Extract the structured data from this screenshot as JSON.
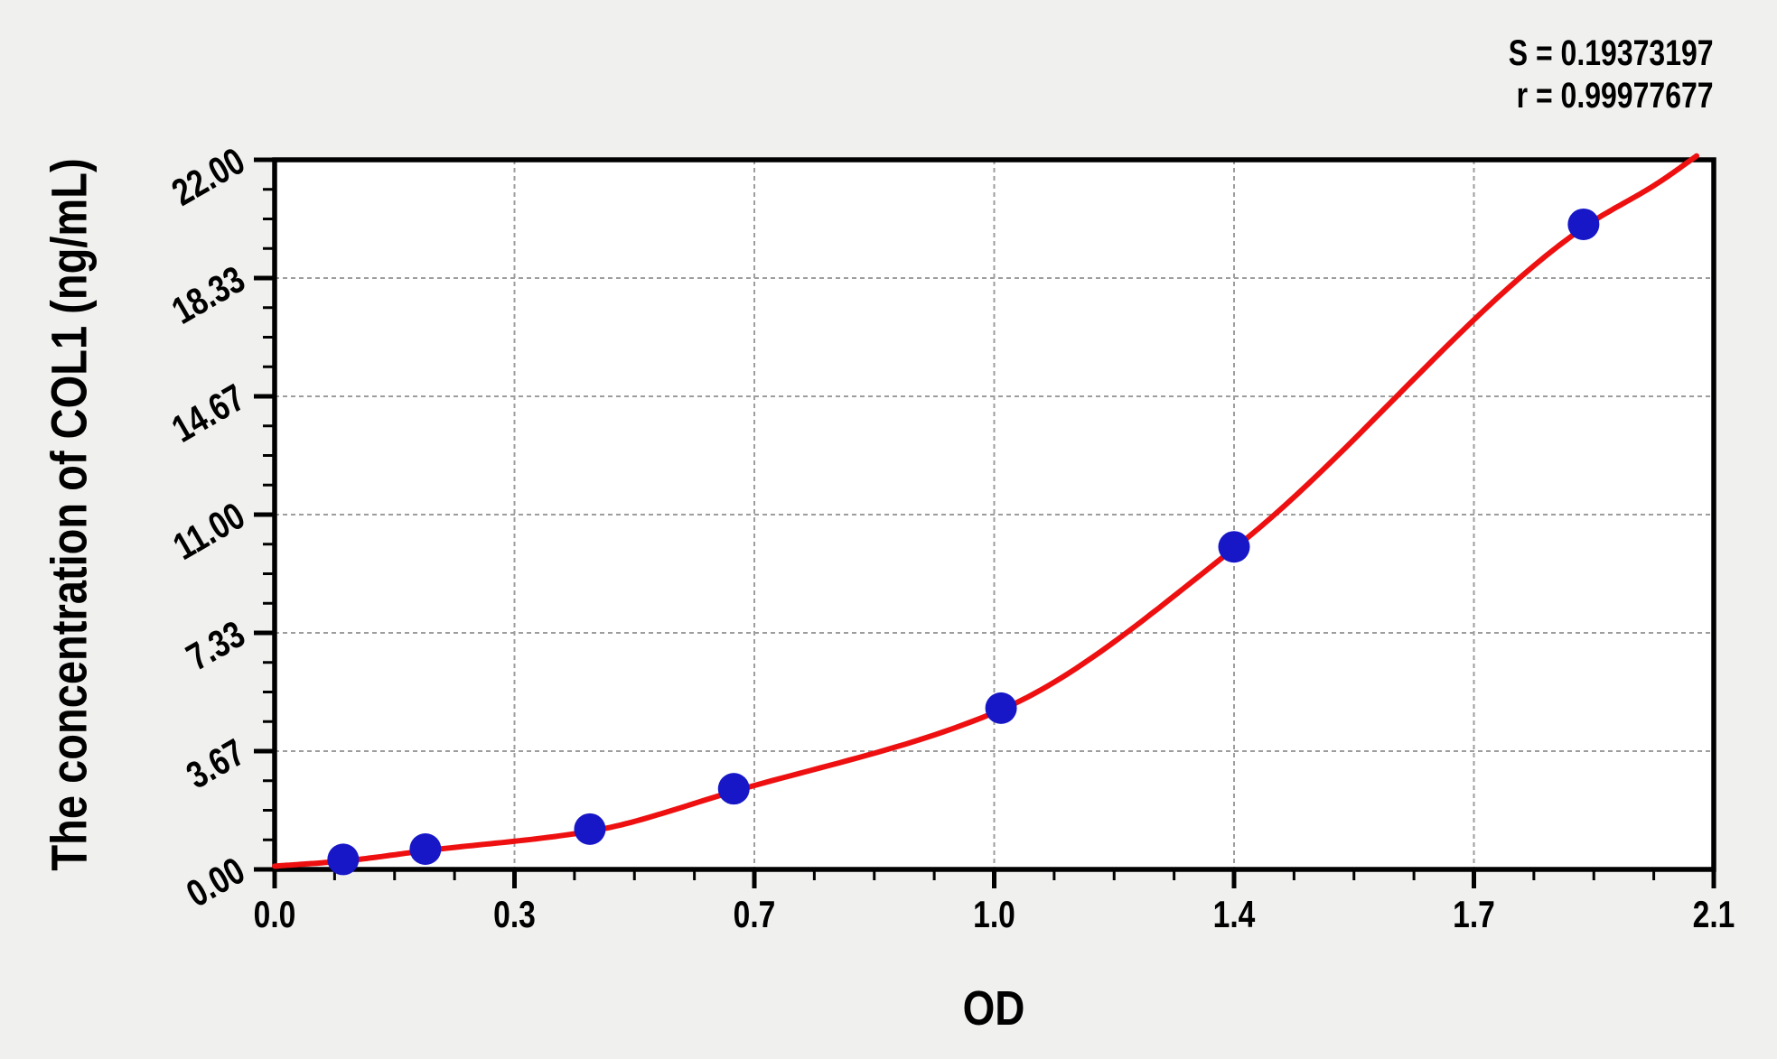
{
  "stats": {
    "s_label": "S = 0.19373197",
    "r_label": "r = 0.99977677"
  },
  "colors": {
    "page_bg": "#f0f0ee",
    "plot_bg": "#ffffff",
    "axis": "#000000",
    "grid": "#9d9d9d",
    "curve": "#ee1010",
    "marker": "#1717c8",
    "text": "#000000"
  },
  "chart_data": {
    "type": "scatter",
    "title": "",
    "xlabel": "OD",
    "ylabel": "The concentration of COL1 (ng/mL)",
    "xlim": [
      0,
      2.1
    ],
    "ylim": [
      0,
      22
    ],
    "grid": {
      "show": true,
      "style": "dashed",
      "at": "major-ticks"
    },
    "legend": "none",
    "x_ticks": {
      "values": [
        0,
        0.35,
        0.7,
        1.05,
        1.4,
        1.75,
        2.1
      ],
      "labels": [
        "0.0",
        "0.3",
        "0.7",
        "1.0",
        "1.4",
        "1.7",
        "2.1"
      ],
      "minor_divisions": 4
    },
    "y_ticks": {
      "values": [
        0,
        3.667,
        7.333,
        11,
        14.667,
        18.333,
        22
      ],
      "labels": [
        "0.00",
        "3.67",
        "7.33",
        "11.00",
        "14.67",
        "18.33",
        "22.00"
      ],
      "minor_divisions": 4
    },
    "series": [
      {
        "name": "standard-points",
        "type": "scatter",
        "marker": "circle",
        "x": [
          0.1,
          0.22,
          0.46,
          0.67,
          1.06,
          1.4,
          1.91
        ],
        "y": [
          0.31,
          0.63,
          1.25,
          2.5,
          5,
          10,
          20
        ]
      },
      {
        "name": "fit-curve",
        "type": "line",
        "anchors": [
          [
            0,
            0.1
          ],
          [
            0.1,
            0.26
          ],
          [
            0.22,
            0.58
          ],
          [
            0.46,
            1.18
          ],
          [
            0.67,
            2.42
          ],
          [
            1.06,
            4.95
          ],
          [
            1.4,
            9.95
          ],
          [
            1.91,
            19.9
          ],
          [
            2.02,
            21.3
          ],
          [
            2.075,
            22.12
          ]
        ]
      }
    ],
    "fit_statistics": {
      "S": "0.19373197",
      "r": "0.99977677"
    }
  }
}
